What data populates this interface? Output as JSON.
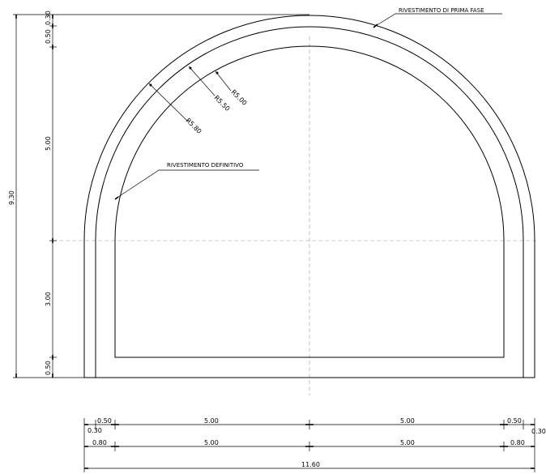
{
  "labels": {
    "rivestimento_prima_fase": "RIVESTIMENTO DI PRIMA FASE",
    "rivestimento_definitivo": "RIVESTIMENTO DEFINITIVO",
    "radius_inner": "R5.00",
    "radius_mid": "R5.50",
    "radius_outer": "R5.80"
  },
  "vertical_dims": {
    "total": "9.30",
    "top_030": "0.30",
    "top_050": "0.50",
    "arch": "5.00",
    "wall": "3.00",
    "base": "0.50"
  },
  "horizontal_dims": {
    "row1_left_050": "0.50",
    "row1_left_030": "0.30",
    "row1_left_500": "5.00",
    "row1_right_500": "5.00",
    "row1_right_050": "0.50",
    "row1_right_030": "0.30",
    "row2_left_080": "0.80",
    "row2_left_500": "5.00",
    "row2_right_500": "5.00",
    "row2_right_080": "0.80",
    "total": "11.60"
  }
}
